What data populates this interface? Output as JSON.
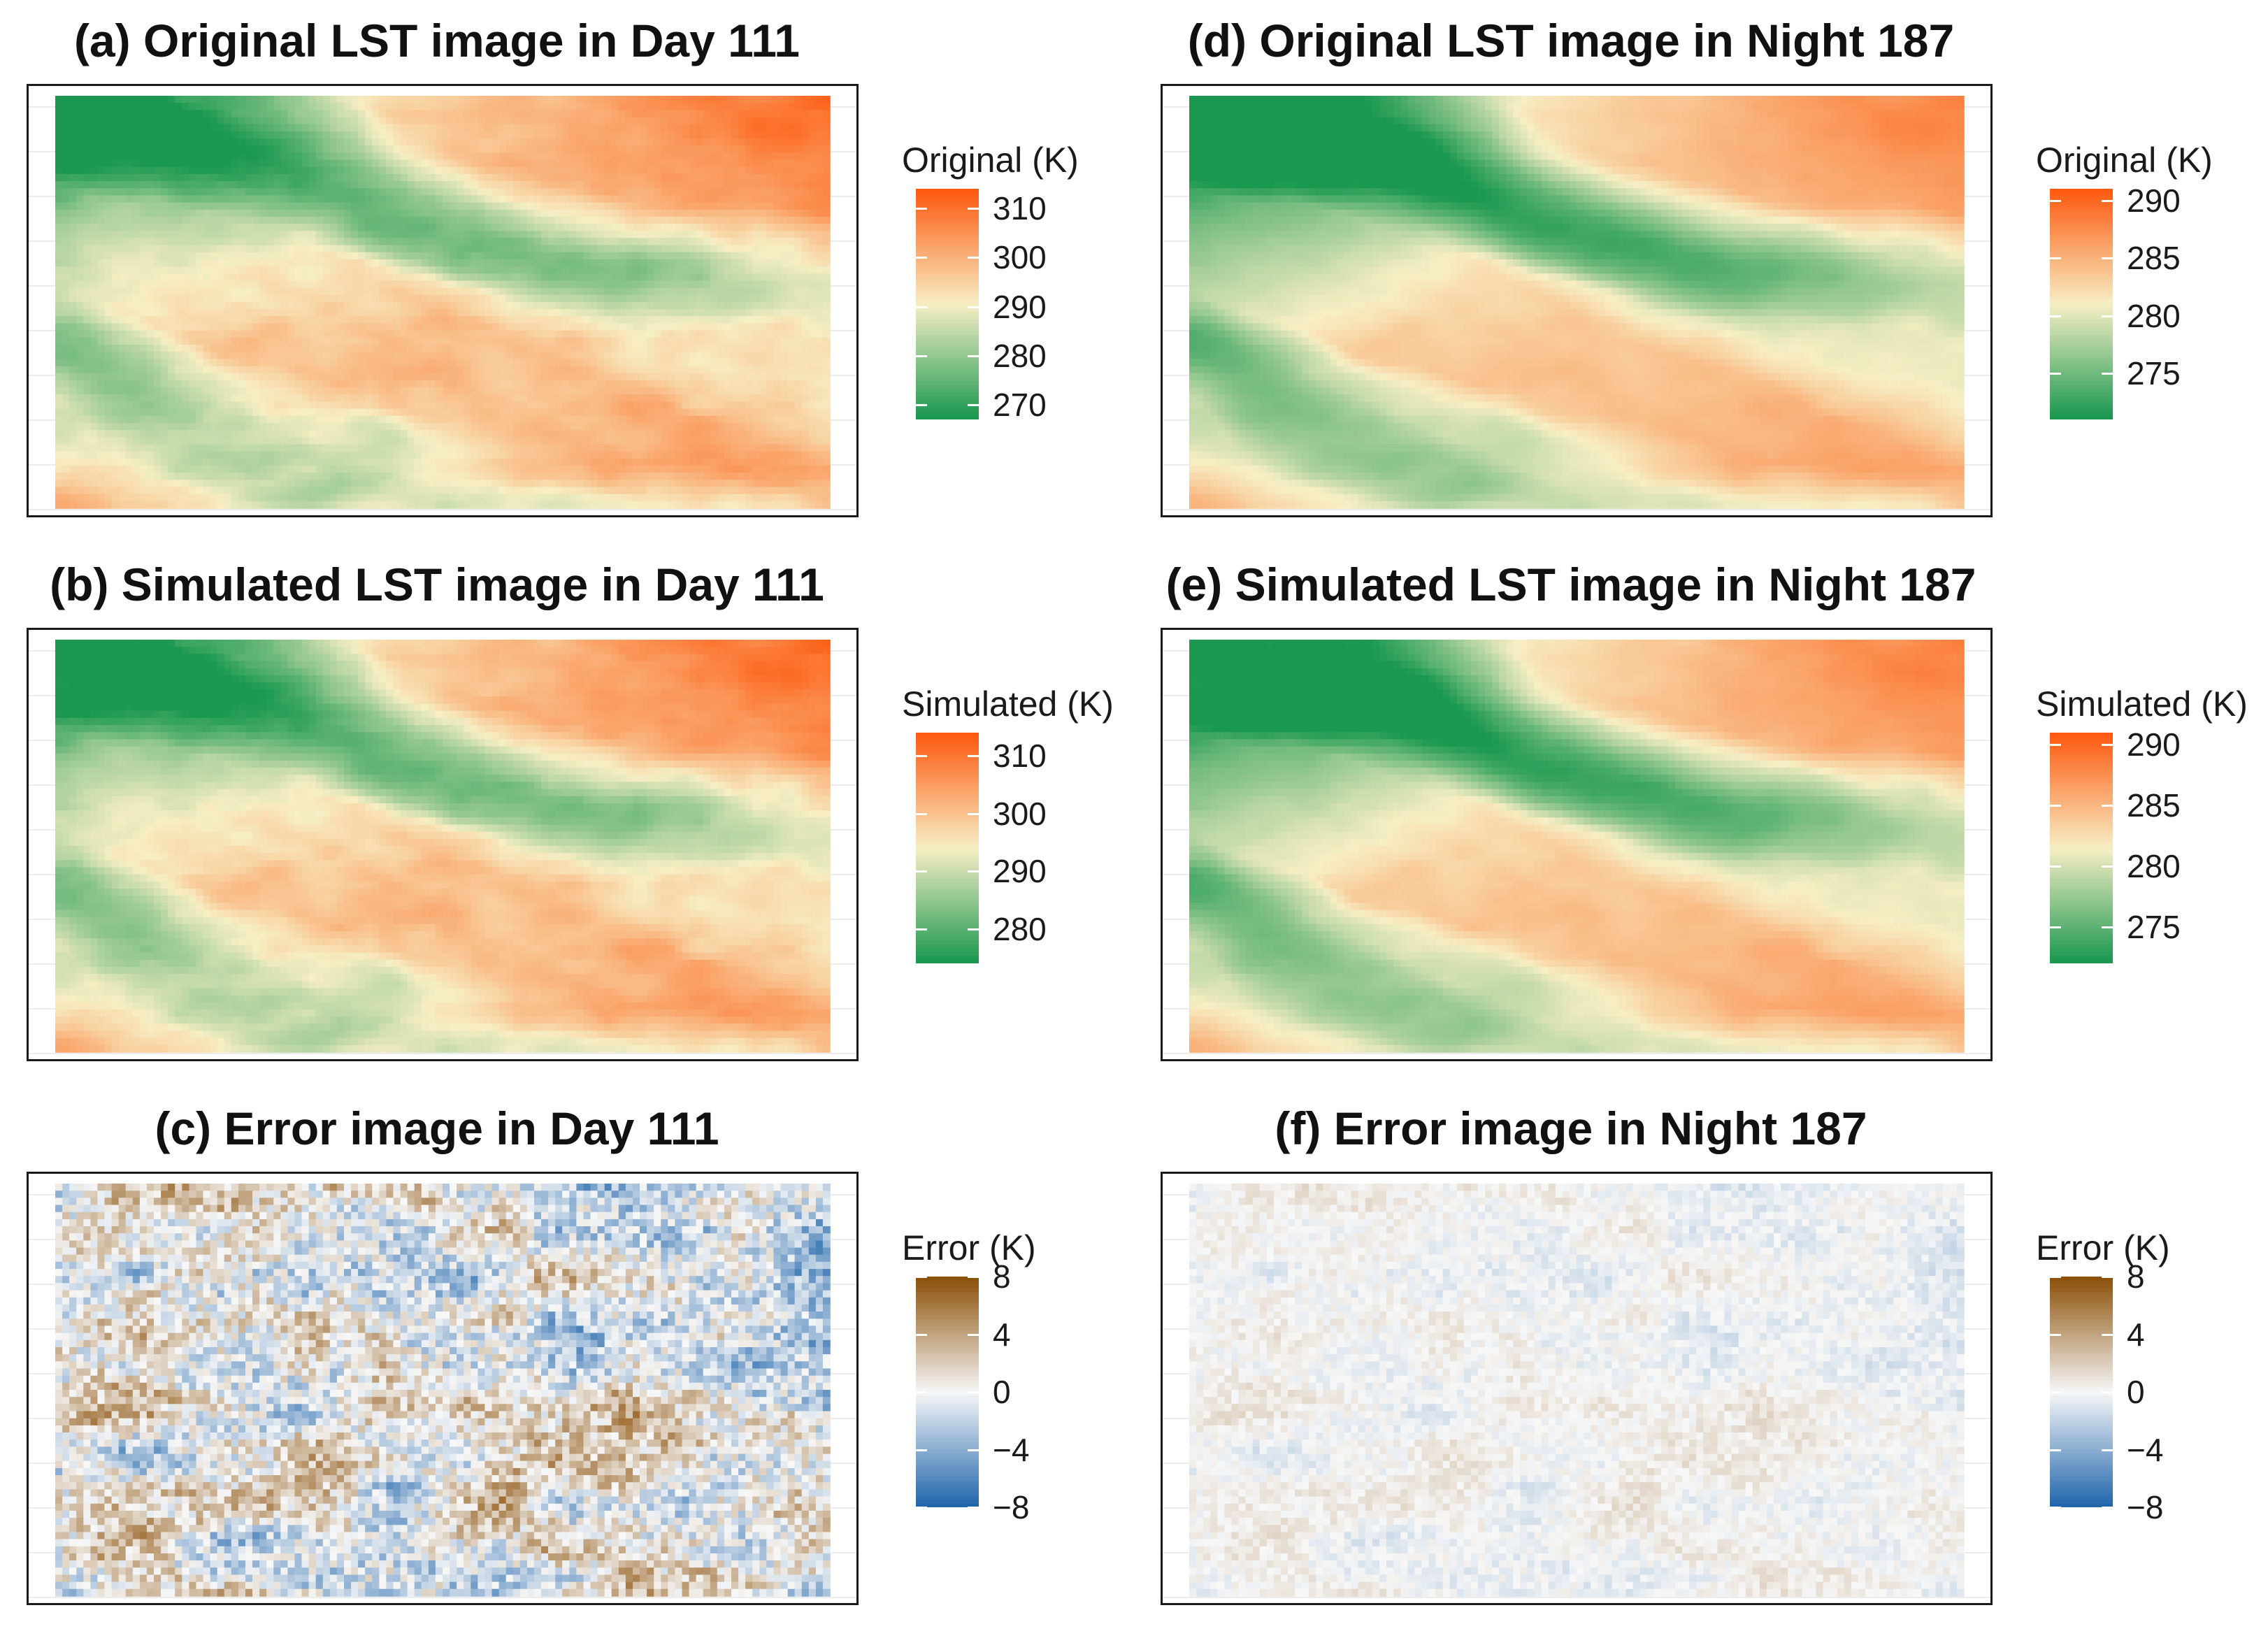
{
  "figure": {
    "colors": {
      "lst_low": "#1a9850",
      "lst_mid": "#f7eec4",
      "lst_high": "#fd5a10",
      "err_low": "#2166ac",
      "err_mid": "#f7f7f7",
      "err_high": "#8c510a"
    }
  },
  "chart_data": [
    {
      "type": "heatmap",
      "id": "a",
      "title": "(a) Original LST image in Day 111",
      "colorbar": {
        "title": "Original (K)",
        "ticks": [
          "310",
          "300",
          "290",
          "280",
          "270"
        ],
        "tick_values": [
          310,
          300,
          290,
          280,
          270
        ],
        "range": [
          267,
          314
        ],
        "palette": "green-cream-orange"
      },
      "value_range": [
        268,
        313
      ],
      "pattern": "day"
    },
    {
      "type": "heatmap",
      "id": "b",
      "title": "(b) Simulated LST image in Day 111",
      "colorbar": {
        "title": "Simulated (K)",
        "ticks": [
          "310",
          "300",
          "290",
          "280"
        ],
        "tick_values": [
          310,
          300,
          290,
          280
        ],
        "range": [
          274,
          314
        ],
        "palette": "green-cream-orange"
      },
      "value_range": [
        275,
        313
      ],
      "pattern": "day"
    },
    {
      "type": "heatmap",
      "id": "c",
      "title": "(c) Error image in Day 111",
      "colorbar": {
        "title": "Error (K)",
        "ticks": [
          "8",
          "4",
          "0",
          "−4",
          "−8"
        ],
        "tick_values": [
          8,
          4,
          0,
          -4,
          -8
        ],
        "range": [
          -8,
          8
        ],
        "palette": "blue-white-brown"
      },
      "value_range": [
        -8,
        8
      ],
      "pattern": "error-day"
    },
    {
      "type": "heatmap",
      "id": "d",
      "title": "(d) Original LST image in Night 187",
      "colorbar": {
        "title": "Original (K)",
        "ticks": [
          "290",
          "285",
          "280",
          "275"
        ],
        "tick_values": [
          290,
          285,
          280,
          275
        ],
        "range": [
          271,
          291
        ],
        "palette": "green-cream-orange"
      },
      "value_range": [
        271,
        291
      ],
      "pattern": "night"
    },
    {
      "type": "heatmap",
      "id": "e",
      "title": "(e) Simulated LST image in Night 187",
      "colorbar": {
        "title": "Simulated (K)",
        "ticks": [
          "290",
          "285",
          "280",
          "275"
        ],
        "tick_values": [
          290,
          285,
          280,
          275
        ],
        "range": [
          272,
          291
        ],
        "palette": "green-cream-orange"
      },
      "value_range": [
        272,
        291
      ],
      "pattern": "night"
    },
    {
      "type": "heatmap",
      "id": "f",
      "title": "(f) Error image in Night 187",
      "colorbar": {
        "title": "Error (K)",
        "ticks": [
          "8",
          "4",
          "0",
          "−4",
          "−8"
        ],
        "tick_values": [
          8,
          4,
          0,
          -4,
          -8
        ],
        "range": [
          -8,
          8
        ],
        "palette": "blue-white-brown"
      },
      "value_range": [
        -8,
        8
      ],
      "pattern": "error-night"
    }
  ]
}
